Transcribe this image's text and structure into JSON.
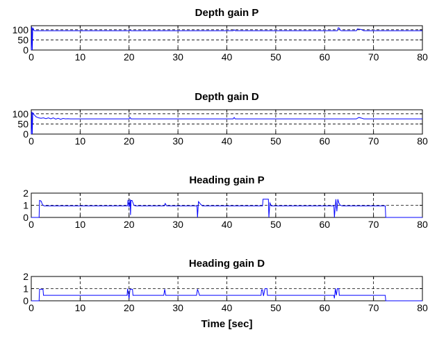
{
  "chart_data": [
    {
      "type": "line",
      "title": "Depth gain P",
      "xlim": [
        0,
        80
      ],
      "ylim": [
        0,
        120
      ],
      "xticks": [
        0,
        10,
        20,
        30,
        40,
        50,
        60,
        70,
        80
      ],
      "yticks": [
        0,
        50,
        100
      ],
      "grid": true,
      "series": [
        {
          "color": "#0000ff",
          "x": [
            0,
            0.1,
            0.2,
            0.3,
            0.5,
            0.6,
            20,
            20.2,
            20.4,
            41.3,
            41.5,
            41.7,
            62.6,
            62.8,
            63.0,
            63.2,
            63.4,
            66.5,
            66.7,
            67.5,
            68.0,
            80
          ],
          "y": [
            0,
            115,
            0,
            110,
            100,
            95,
            95,
            98,
            95,
            95,
            100,
            95,
            95,
            110,
            108,
            98,
            95,
            95,
            104,
            101,
            95,
            95
          ]
        }
      ]
    },
    {
      "type": "line",
      "title": "Depth gain D",
      "xlim": [
        0,
        80
      ],
      "ylim": [
        0,
        120
      ],
      "xticks": [
        0,
        10,
        20,
        30,
        40,
        50,
        60,
        70,
        80
      ],
      "yticks": [
        0,
        50,
        100
      ],
      "grid": true,
      "series": [
        {
          "color": "#0000ff",
          "x": [
            0,
            0.1,
            0.2,
            0.3,
            0.6,
            1.0,
            1.5,
            2.0,
            2.5,
            3.0,
            3.5,
            4.0,
            4.5,
            5.0,
            5.5,
            6.0,
            6.5,
            7.0,
            7.5,
            8.0,
            20,
            20.2,
            20.4,
            41.3,
            41.5,
            41.7,
            66.5,
            67.0,
            67.5,
            68.0,
            80
          ],
          "y": [
            0,
            110,
            0,
            105,
            95,
            85,
            80,
            78,
            80,
            76,
            80,
            75,
            80,
            74,
            78,
            73,
            77,
            75,
            76,
            75,
            75,
            82,
            75,
            75,
            82,
            75,
            75,
            82,
            79,
            75,
            75
          ]
        }
      ]
    },
    {
      "type": "line",
      "title": "Heading gain P",
      "xlim": [
        0,
        80
      ],
      "ylim": [
        0,
        2
      ],
      "xticks": [
        0,
        10,
        20,
        30,
        40,
        50,
        60,
        70,
        80
      ],
      "yticks": [
        0,
        1,
        2
      ],
      "grid": true,
      "series": [
        {
          "color": "#0000ff",
          "x": [
            0,
            1.6,
            1.7,
            2.0,
            2.3,
            2.6,
            19.7,
            19.8,
            20.0,
            20.2,
            20.3,
            20.4,
            20.6,
            20.8,
            21.0,
            21.3,
            27.2,
            27.4,
            27.7,
            33.9,
            34.0,
            34.2,
            34.6,
            35.0,
            47.3,
            47.4,
            47.6,
            48.5,
            48.6,
            48.8,
            49.1,
            61.9,
            62.0,
            62.3,
            62.5,
            62.7,
            62.9,
            63.2,
            63.6,
            72.4,
            72.5,
            80
          ],
          "y": [
            0,
            0,
            1.4,
            1.35,
            1.05,
            0.95,
            0.95,
            1.45,
            0.85,
            1.5,
            0.2,
            1.4,
            1.4,
            1.2,
            1.0,
            0.95,
            0.95,
            1.15,
            0.95,
            0.95,
            0.0,
            1.3,
            1.1,
            0.95,
            0.95,
            1.5,
            1.5,
            1.5,
            0.0,
            1.2,
            0.95,
            0.95,
            0.0,
            1.5,
            0.5,
            1.5,
            1.2,
            1.0,
            0.95,
            0.95,
            0.0,
            0.0
          ]
        }
      ]
    },
    {
      "type": "line",
      "title": "Heading gain D",
      "xlim": [
        0,
        80
      ],
      "ylim": [
        0,
        2
      ],
      "xticks": [
        0,
        10,
        20,
        30,
        40,
        50,
        60,
        70,
        80
      ],
      "yticks": [
        0,
        1,
        2
      ],
      "grid": true,
      "xlabel": "Time [sec]",
      "series": [
        {
          "color": "#0000ff",
          "x": [
            0,
            1.6,
            1.7,
            2.0,
            2.4,
            2.5,
            19.6,
            19.7,
            20.0,
            20.2,
            20.5,
            20.7,
            20.8,
            27.1,
            27.3,
            27.5,
            33.8,
            34.0,
            34.3,
            34.4,
            47.0,
            47.1,
            47.3,
            47.5,
            47.8,
            48.2,
            48.3,
            61.9,
            62.0,
            62.2,
            62.4,
            62.6,
            62.9,
            63.0,
            72.4,
            72.5,
            80
          ],
          "y": [
            0,
            0,
            0.95,
            0.95,
            0.95,
            0.45,
            0.45,
            1.0,
            0.2,
            0.95,
            0.95,
            0.95,
            0.45,
            0.45,
            0.95,
            0.45,
            0.45,
            0.95,
            0.6,
            0.45,
            0.45,
            0.9,
            0.9,
            0.4,
            1.0,
            1.0,
            0.45,
            0.45,
            0.2,
            1.0,
            0.45,
            1.0,
            1.0,
            0.45,
            0.45,
            0.0,
            0.0
          ]
        }
      ]
    }
  ]
}
